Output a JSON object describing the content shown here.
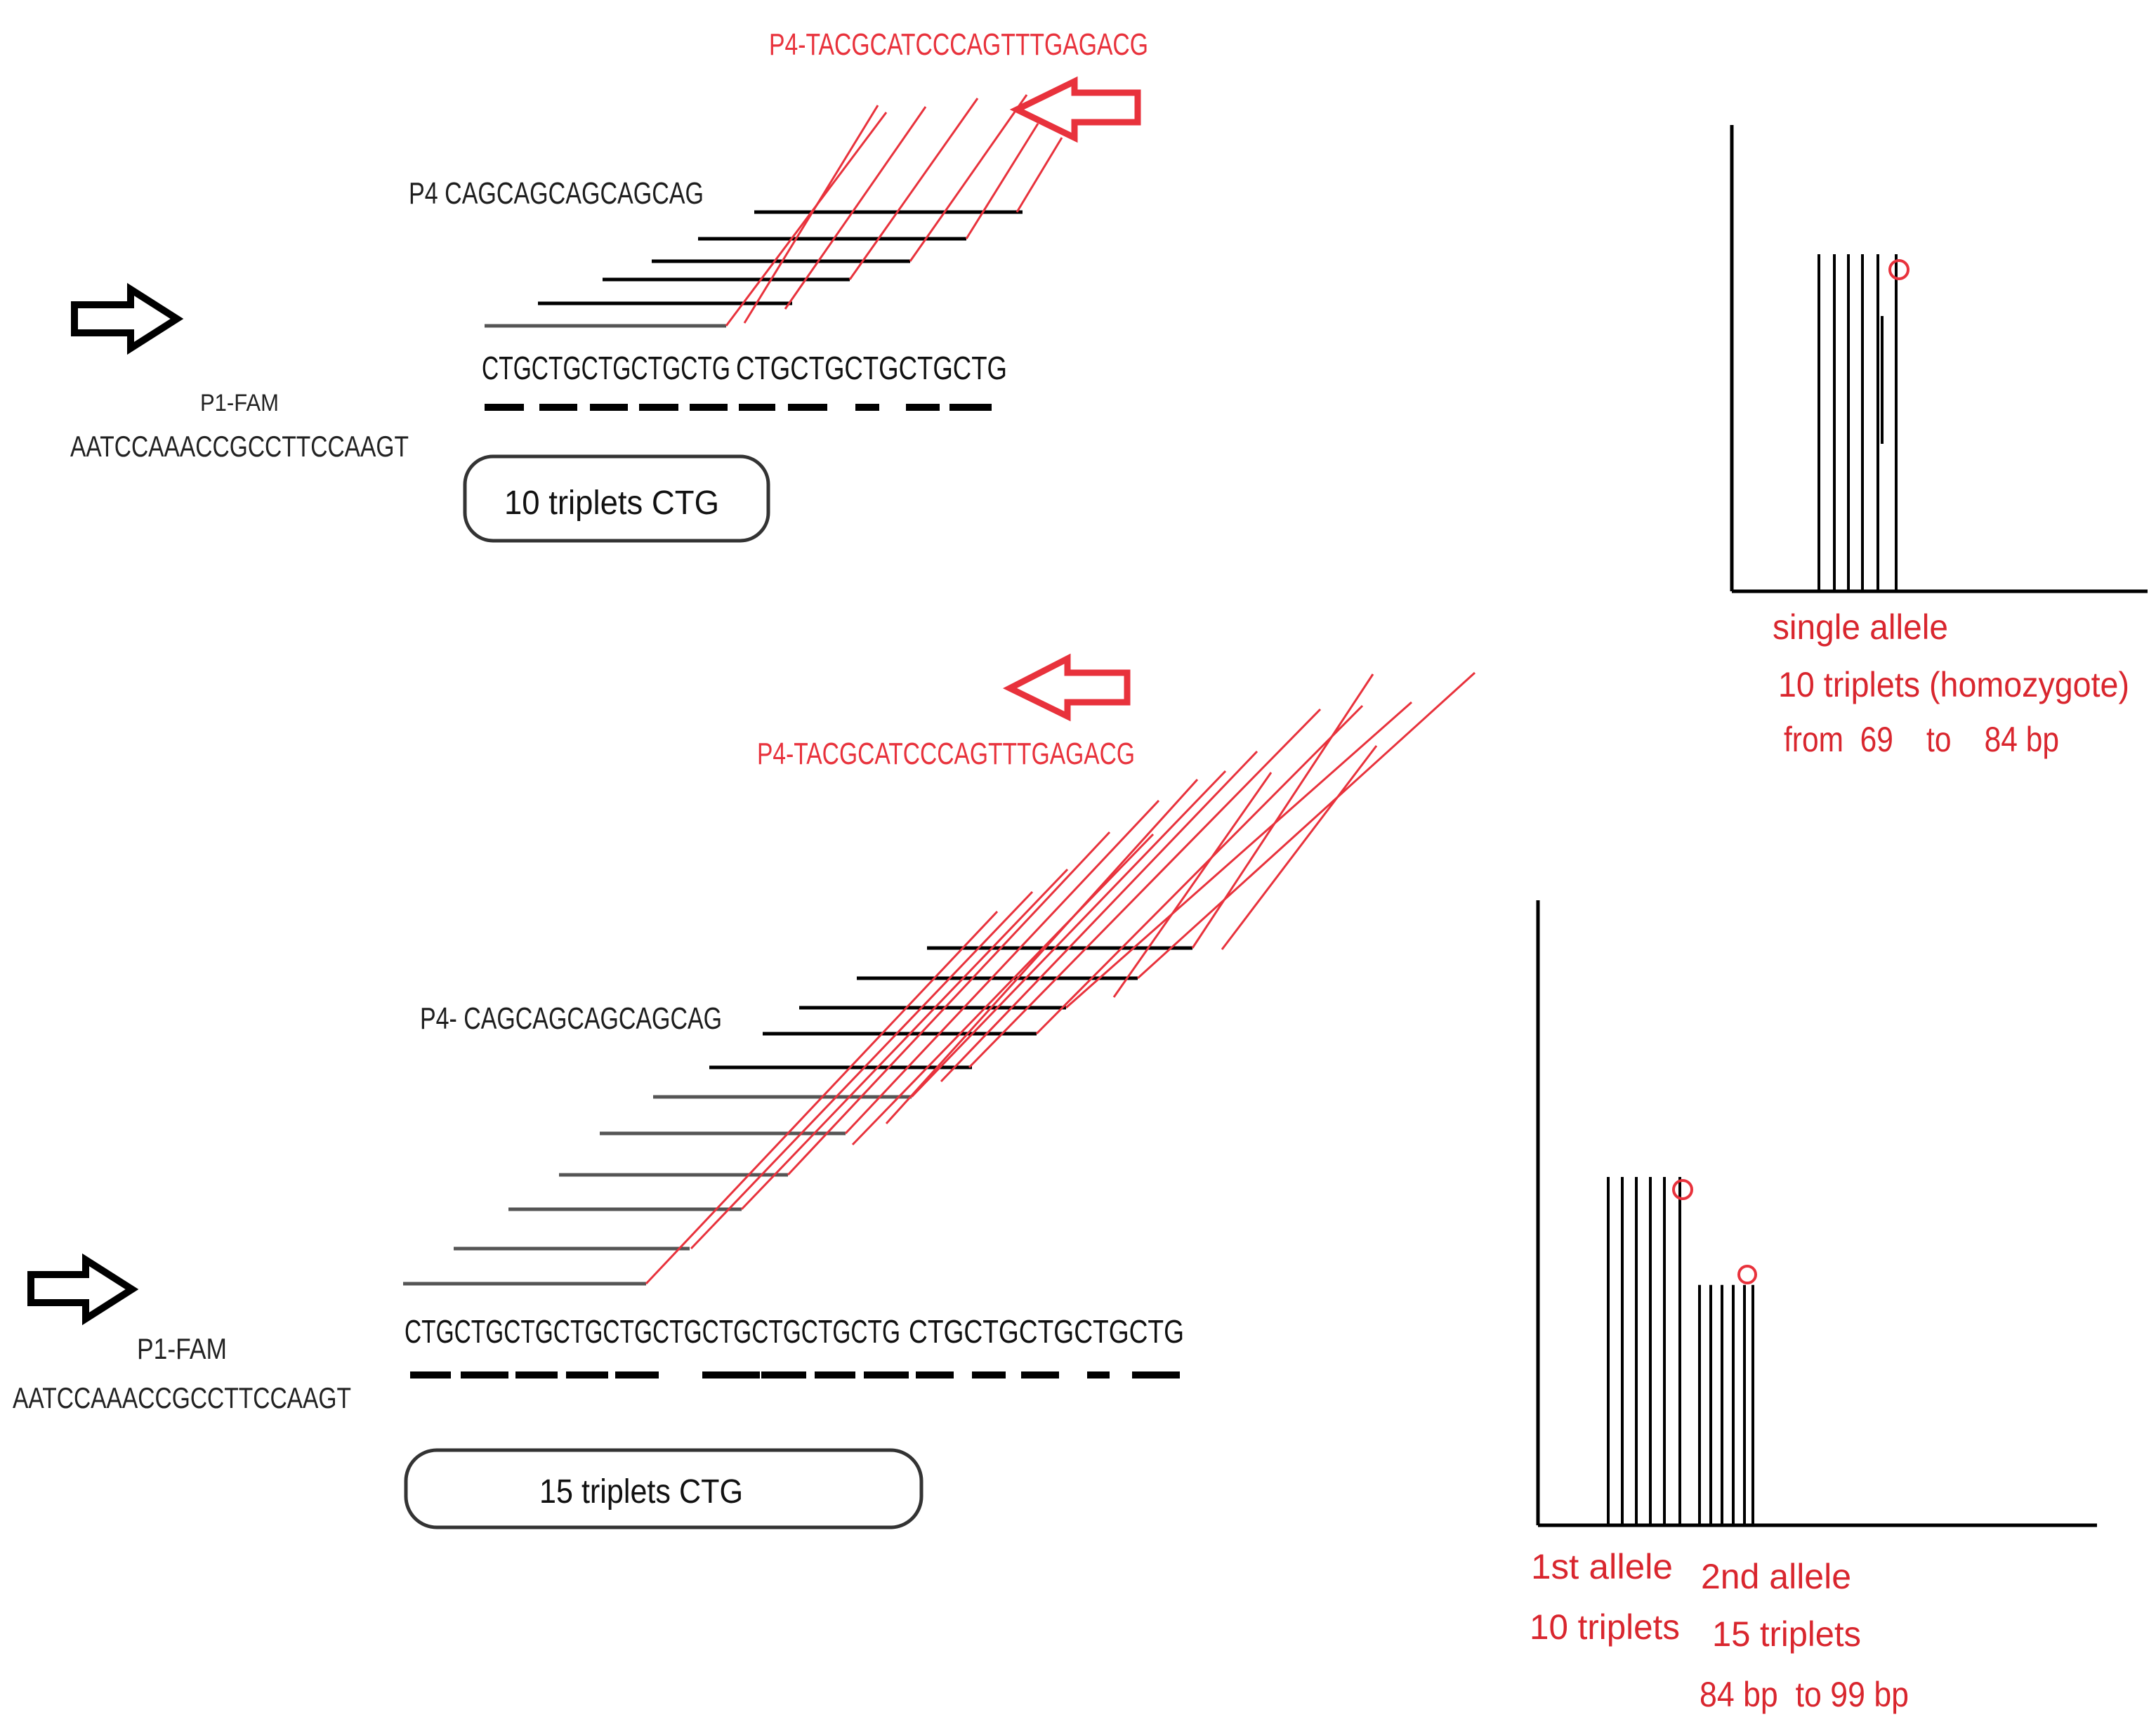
{
  "colors": {
    "primer_red": "#e8323c",
    "line_black": "#000000",
    "line_gray": "#555555",
    "label_red": "#d9262e"
  },
  "icons": {
    "forward_arrow": "hollow-black-right-arrow-icon",
    "reverse_arrow": "hollow-red-left-arrow-icon",
    "peak_marker": "red-circle-marker-icon"
  },
  "panel_top": {
    "reverse_primer": "P4-TACGCATCCCAGTTTGAGACG",
    "p4_label": "P4 CAGCAGCAGCAGCAG",
    "repeat_seq_a": "CTGCTGCTGCTGCTG",
    "repeat_seq_b": "CTGCTGCTGCTGCTG",
    "p1_label": "P1-FAM",
    "p1_seq": "AATCCAAACCGCCTTCCAAGT",
    "box_label": "10 triplets  CTG",
    "tick_dashes": 10,
    "black_lines": 5,
    "red_lines": 7
  },
  "panel_bottom": {
    "reverse_primer": "P4-TACGCATCCCAGTTTGAGACG",
    "p4_label": "P4- CAGCAGCAGCAGCAG",
    "repeat_seq_a": "CTGCTGCTGCTGCTGCTGCTGCTGCTGCTG",
    "repeat_seq_b": "CTGCTGCTGCTGCTG",
    "p1_label": "P1-FAM",
    "p1_seq": "AATCCAAACCGCCTTCCAAGT",
    "box_label": "15 triplets CTG",
    "tick_dashes": 15,
    "black_lines": 5,
    "gray_lines": 6,
    "red_lines": 16
  },
  "plot_top": {
    "caption_line1": "single allele",
    "caption_line2": "10 triplets (homozygote)",
    "caption_line3": "from  69    to    84 bp",
    "peaks": [
      1,
      1,
      1,
      1,
      1,
      1
    ],
    "marked_peak": 6
  },
  "plot_bottom": {
    "caption_left_1": "1st allele",
    "caption_left_2": "10 triplets",
    "caption_right_1": "2nd allele",
    "caption_right_2": "15 triplets",
    "caption_right_3": "84 bp  to 99 bp",
    "peaks_allele1": [
      1,
      1,
      1,
      1,
      1,
      1
    ],
    "peaks_allele2": [
      0.69,
      0.69,
      0.69,
      0.69,
      0.69,
      0.69
    ]
  }
}
